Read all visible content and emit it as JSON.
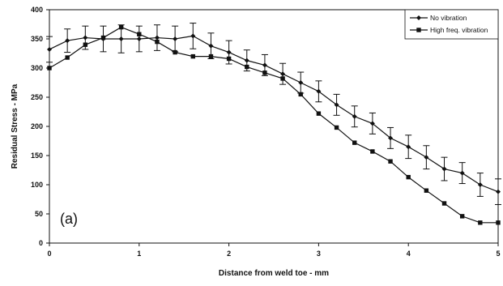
{
  "chart_data": {
    "type": "line",
    "panel_label": "(a)",
    "xlabel": "Distance from weld toe - mm",
    "ylabel": "Residual Stress - MPa",
    "xlim": [
      0,
      5
    ],
    "ylim": [
      0,
      400
    ],
    "xticks": [
      0,
      1,
      2,
      3,
      4,
      5
    ],
    "yticks": [
      0,
      50,
      100,
      150,
      200,
      250,
      300,
      350,
      400
    ],
    "grid": false,
    "legend_position": "top-right",
    "series": [
      {
        "name": "No vibration",
        "marker": "diamond",
        "color": "#111111",
        "x": [
          0,
          0.2,
          0.4,
          0.6,
          0.8,
          1.0,
          1.2,
          1.4,
          1.6,
          1.8,
          2.0,
          2.2,
          2.4,
          2.6,
          2.8,
          3.0,
          3.2,
          3.4,
          3.6,
          3.8,
          4.0,
          4.2,
          4.4,
          4.6,
          4.8,
          5.0
        ],
        "y": [
          332,
          347,
          352,
          350,
          350,
          350,
          352,
          350,
          355,
          338,
          327,
          313,
          305,
          290,
          275,
          260,
          237,
          217,
          205,
          180,
          165,
          147,
          127,
          120,
          100,
          88
        ],
        "error": [
          22,
          20,
          20,
          22,
          24,
          22,
          22,
          22,
          22,
          22,
          20,
          18,
          18,
          18,
          18,
          18,
          18,
          18,
          18,
          18,
          20,
          20,
          20,
          18,
          20,
          22
        ]
      },
      {
        "name": "High freq. vibration",
        "marker": "square",
        "color": "#111111",
        "x": [
          0,
          0.2,
          0.4,
          0.6,
          0.8,
          1.0,
          1.2,
          1.4,
          1.6,
          1.8,
          2.0,
          2.2,
          2.4,
          2.6,
          2.8,
          3.0,
          3.2,
          3.4,
          3.6,
          3.8,
          4.0,
          4.2,
          4.4,
          4.6,
          4.8,
          5.0
        ],
        "y": [
          300,
          318,
          340,
          352,
          370,
          358,
          345,
          327,
          320,
          320,
          316,
          302,
          292,
          282,
          255,
          222,
          198,
          172,
          157,
          140,
          113,
          90,
          68,
          46,
          35,
          35
        ]
      }
    ]
  }
}
